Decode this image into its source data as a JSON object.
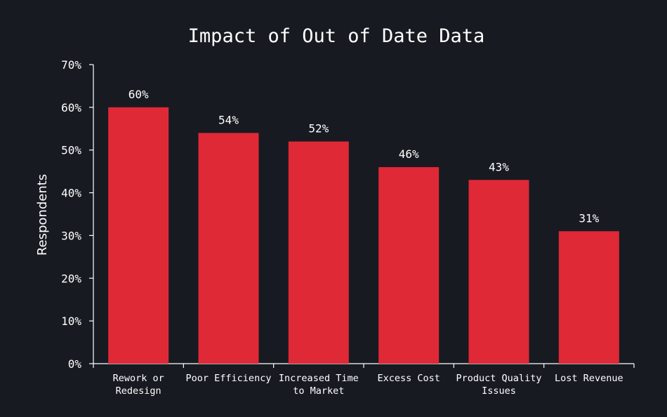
{
  "chart_data": {
    "type": "bar",
    "title": "Impact of Out of Date Data",
    "xlabel": "",
    "ylabel": "Respondents",
    "categories": [
      [
        "Rework or",
        "Redesign"
      ],
      [
        "Poor Efficiency"
      ],
      [
        "Increased Time",
        "to Market"
      ],
      [
        "Excess Cost"
      ],
      [
        "Product Quality",
        "Issues"
      ],
      [
        "Lost Revenue"
      ]
    ],
    "values": [
      60,
      54,
      52,
      46,
      43,
      31
    ],
    "value_labels": [
      "60%",
      "54%",
      "52%",
      "46%",
      "43%",
      "31%"
    ],
    "ylim": [
      0,
      70
    ],
    "y_ticks": [
      0,
      10,
      20,
      30,
      40,
      50,
      60,
      70
    ],
    "y_tick_labels": [
      "0%",
      "10%",
      "20%",
      "30%",
      "40%",
      "50%",
      "60%",
      "70%"
    ],
    "grid": false,
    "legend": "none",
    "colors": {
      "background": "#171a21",
      "bar": "#e02936",
      "axis": "#ffffff",
      "text": "#ffffff"
    }
  }
}
